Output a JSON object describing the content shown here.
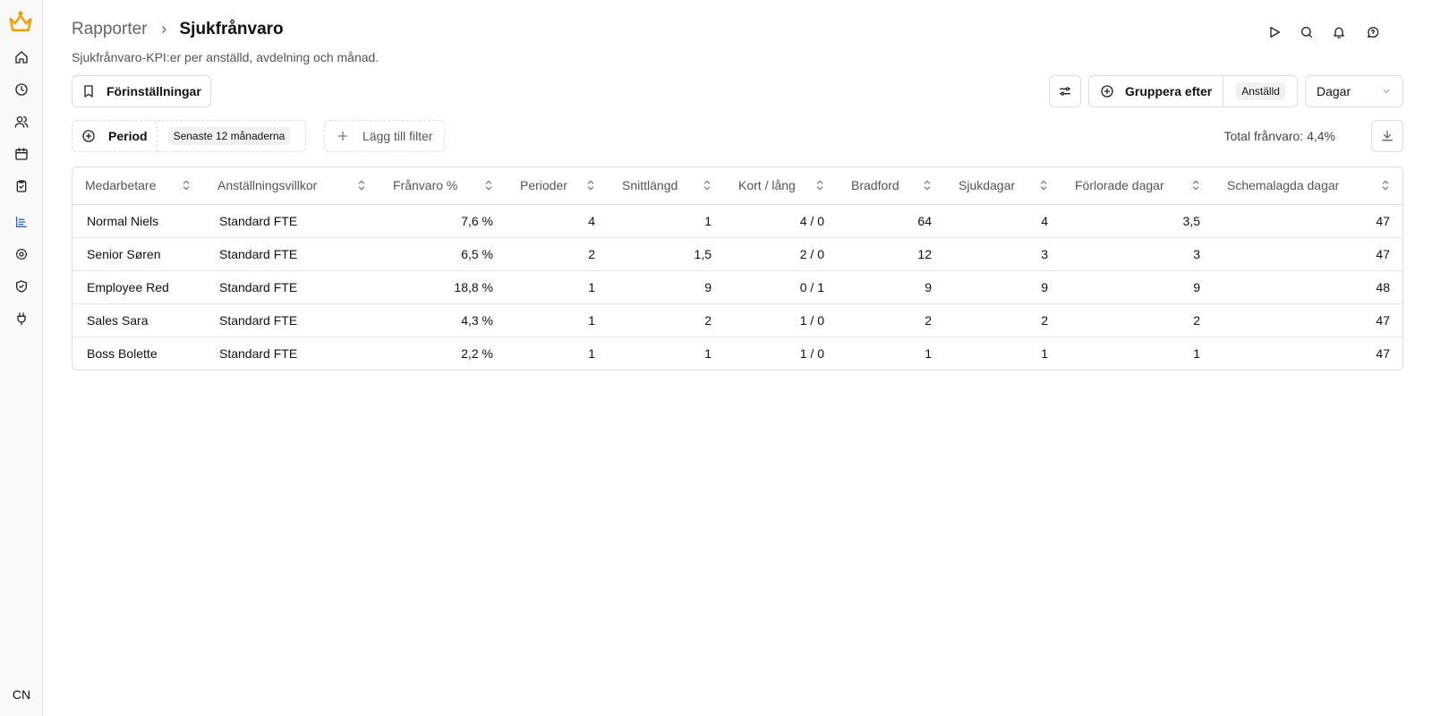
{
  "breadcrumb": [
    "Rapporter",
    "Sjukfrånvaro"
  ],
  "subtitle": "Sjukfrånvaro-KPI:er per anställd, avdelning och månad.",
  "toolbar": {
    "presets": "Förinställningar",
    "group_by": "Gruppera efter",
    "group_value": "Anställd",
    "unit": "Dagar"
  },
  "filters": {
    "period": "Period",
    "period_value": "Senaste 12 månaderna",
    "add_filter": "Lägg till filter",
    "total": "Total frånvaro: 4,4%"
  },
  "table": {
    "columns": [
      "Medarbetare",
      "Anställningsvillkor",
      "Frånvaro %",
      "Perioder",
      "Snittlängd",
      "Kort / lång",
      "Bradford",
      "Sjukdagar",
      "Förlorade dagar",
      "Schemalagda dagar"
    ],
    "rows": [
      [
        "Normal Niels",
        "Standard FTE",
        "7,6 %",
        "4",
        "1",
        "4 / 0",
        "64",
        "4",
        "3,5",
        "47"
      ],
      [
        "Senior Søren",
        "Standard FTE",
        "6,5 %",
        "2",
        "1,5",
        "2 / 0",
        "12",
        "3",
        "3",
        "47"
      ],
      [
        "Employee Red",
        "Standard FTE",
        "18,8 %",
        "1",
        "9",
        "0 / 1",
        "9",
        "9",
        "9",
        "48"
      ],
      [
        "Sales Sara",
        "Standard FTE",
        "4,3 %",
        "1",
        "2",
        "1 / 0",
        "2",
        "2",
        "2",
        "47"
      ],
      [
        "Boss Bolette",
        "Standard FTE",
        "2,2 %",
        "1",
        "1",
        "1 / 0",
        "1",
        "1",
        "1",
        "47"
      ]
    ]
  },
  "user": "CN"
}
